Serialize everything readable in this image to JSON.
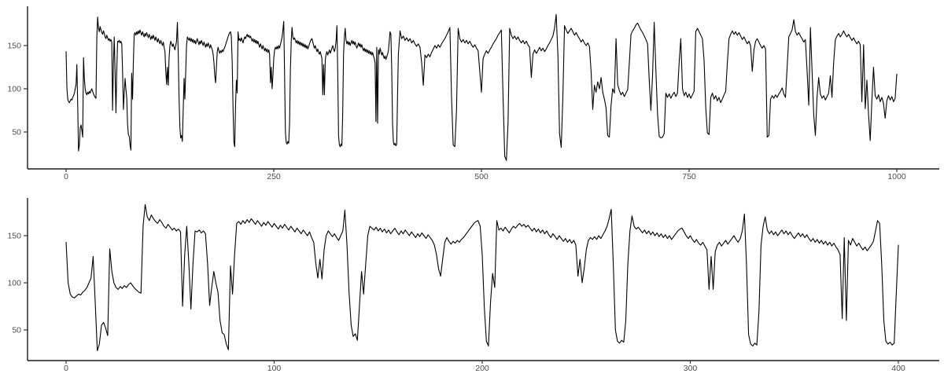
{
  "figure": {
    "background": "#ffffff",
    "line_color": "#000000",
    "axis_color": "#1a1a1a",
    "tick_color": "#333333",
    "tick_label_color": "#4d4d4d",
    "tick_font_size": 10.5
  },
  "chart_data": [
    {
      "id": "top",
      "type": "line",
      "title": "",
      "xlabel": "",
      "ylabel": "",
      "legend": false,
      "grid": false,
      "xlim": [
        0,
        1000
      ],
      "ylim": [
        7,
        195
      ],
      "x_ticks": [
        0,
        250,
        500,
        750,
        1000
      ],
      "y_ticks": [
        50,
        100,
        150
      ],
      "series_segments": [
        "segment1",
        "segment2"
      ]
    },
    {
      "id": "bottom",
      "type": "line",
      "title": "",
      "xlabel": "",
      "ylabel": "",
      "legend": false,
      "grid": false,
      "xlim": [
        0,
        400
      ],
      "ylim": [
        17,
        190
      ],
      "x_ticks": [
        0,
        100,
        200,
        300,
        400
      ],
      "y_ticks": [
        50,
        100,
        150
      ],
      "series_segments": [
        "segment1"
      ]
    }
  ],
  "series_data": {
    "segment1": {
      "x_start": 0,
      "x_step": 1,
      "y": [
        143,
        100,
        88,
        85,
        84,
        86,
        88,
        87,
        90,
        92,
        95,
        100,
        105,
        128,
        80,
        28,
        35,
        55,
        58,
        52,
        44,
        136,
        112,
        100,
        95,
        93,
        96,
        94,
        97,
        95,
        98,
        100,
        97,
        94,
        92,
        90,
        89,
        160,
        183,
        170,
        166,
        172,
        168,
        165,
        163,
        167,
        164,
        160,
        158,
        162,
        159,
        156,
        158,
        155,
        157,
        154,
        75,
        130,
        160,
        120,
        72,
        120,
        155,
        154,
        156,
        153,
        155,
        152,
        120,
        76,
        95,
        112,
        100,
        90,
        60,
        47,
        45,
        35,
        29,
        118,
        88,
        130,
        163,
        165,
        162,
        166,
        163,
        167,
        164,
        168,
        165,
        162,
        166,
        163,
        160,
        164,
        161,
        165,
        162,
        159,
        163,
        160,
        157,
        161,
        158,
        162,
        159,
        156,
        160,
        157,
        154,
        158,
        155,
        152,
        156,
        153,
        150,
        154,
        148,
        143,
        121,
        105,
        125,
        104,
        135,
        150,
        155,
        152,
        149,
        152,
        148,
        145,
        150,
        155,
        177,
        140,
        90,
        55,
        43,
        46,
        39,
        75,
        112,
        88,
        120,
        150,
        160,
        158,
        156,
        159,
        155,
        158,
        154,
        157,
        153,
        156,
        152,
        155,
        158,
        154,
        151,
        155,
        152,
        156,
        153,
        150,
        154,
        151,
        148,
        152,
        149,
        153,
        150,
        147,
        151,
        148,
        145,
        140,
        130,
        115,
        107,
        125,
        143,
        148,
        144,
        141,
        144,
        142,
        145,
        143,
        146,
        148,
        151,
        154,
        157,
        160,
        163,
        165,
        166,
        160,
        130,
        75,
        38,
        33,
        80,
        110,
        95,
        166,
        156,
        158,
        155,
        159,
        156,
        153,
        157,
        160,
        158,
        161,
        163,
        160,
        162,
        159,
        161,
        158,
        155,
        158,
        154,
        157,
        153,
        156,
        152,
        155,
        151,
        148,
        152,
        149,
        146,
        150,
        147,
        144,
        147,
        143,
        146,
        142,
        145,
        140,
        107,
        125,
        100,
        115,
        135,
        145,
        148,
        146,
        149,
        146,
        150,
        147,
        151,
        155,
        160,
        168,
        178,
        120,
        50,
        38,
        36,
        39,
        37,
        60,
        120,
        155,
        171,
        160,
        157,
        159,
        156,
        153,
        156,
        152,
        155,
        151,
        154,
        150,
        153,
        149,
        152,
        148,
        151,
        147,
        150,
        146,
        149,
        152,
        155,
        157,
        158,
        154,
        150,
        147,
        150,
        146,
        143,
        146,
        142,
        140,
        143,
        139,
        135,
        93,
        128,
        93,
        133,
        140,
        143,
        139,
        142,
        145,
        141,
        144,
        147,
        150,
        146,
        143,
        147,
        155,
        173,
        120,
        45,
        35,
        33,
        36,
        34,
        70,
        140,
        160,
        170,
        156,
        152,
        155,
        151,
        154,
        150,
        153,
        156,
        152,
        155,
        151,
        154,
        150,
        147,
        150,
        153,
        149,
        152,
        148,
        151,
        147,
        144,
        147,
        143,
        146,
        142,
        145,
        141,
        144,
        140,
        143,
        139,
        142,
        138,
        135,
        130,
        62,
        148,
        60,
        145,
        140,
        147,
        143,
        139,
        142,
        138,
        135,
        138,
        134,
        137,
        140,
        144,
        155,
        166,
        163,
        120,
        60,
        38,
        35,
        37,
        34,
        36,
        90,
        140
      ]
    },
    "segment2": {
      "x_start": 402,
      "x_step": 2,
      "y": [
        167,
        158,
        161,
        156,
        159,
        155,
        158,
        153,
        156,
        152,
        149,
        152,
        148,
        130,
        104,
        139,
        136,
        140,
        137,
        142,
        146,
        150,
        147,
        151,
        148,
        152,
        155,
        158,
        162,
        166,
        171,
        90,
        35,
        33,
        75,
        170,
        158,
        154,
        157,
        153,
        156,
        152,
        155,
        151,
        148,
        151,
        147,
        144,
        120,
        96,
        135,
        140,
        144,
        141,
        145,
        148,
        152,
        155,
        158,
        162,
        165,
        168,
        90,
        22,
        17,
        60,
        170,
        162,
        158,
        161,
        157,
        160,
        156,
        153,
        156,
        152,
        155,
        151,
        148,
        113,
        140,
        145,
        141,
        144,
        148,
        144,
        147,
        143,
        146,
        150,
        153,
        157,
        161,
        170,
        186,
        140,
        48,
        32,
        90,
        173,
        168,
        164,
        167,
        170,
        166,
        162,
        165,
        161,
        158,
        154,
        157,
        153,
        150,
        153,
        149,
        120,
        76,
        104,
        96,
        108,
        100,
        113,
        96,
        88,
        78,
        46,
        44,
        80,
        100,
        95,
        158,
        105,
        98,
        93,
        96,
        91,
        95,
        99,
        130,
        163,
        167,
        170,
        174,
        176,
        172,
        168,
        165,
        161,
        157,
        152,
        110,
        75,
        115,
        177,
        120,
        70,
        45,
        43,
        44,
        48,
        95,
        90,
        94,
        89,
        93,
        96,
        91,
        95,
        130,
        158,
        100,
        92,
        96,
        90,
        94,
        89,
        93,
        97,
        166,
        170,
        166,
        162,
        158,
        133,
        79,
        49,
        47,
        90,
        95,
        88,
        92,
        86,
        90,
        84,
        88,
        93,
        97,
        130,
        158,
        163,
        167,
        163,
        166,
        162,
        165,
        161,
        157,
        160,
        156,
        152,
        155,
        150,
        120,
        145,
        155,
        158,
        154,
        150,
        147,
        150,
        146,
        44,
        46,
        88,
        92,
        89,
        93,
        90,
        94,
        97,
        101,
        94,
        90,
        125,
        160,
        164,
        168,
        180,
        166,
        162,
        165,
        161,
        158,
        154,
        157,
        120,
        81,
        171,
        120,
        70,
        46,
        90,
        113,
        94,
        89,
        92,
        87,
        91,
        95,
        115,
        90,
        130,
        157,
        161,
        164,
        160,
        163,
        167,
        163,
        160,
        163,
        159,
        156,
        159,
        155,
        152,
        155,
        151,
        85,
        151,
        77,
        110,
        70,
        40,
        86,
        125,
        92,
        88,
        93,
        85,
        90,
        83,
        66,
        86,
        92,
        87,
        91,
        85,
        89,
        117
      ]
    }
  }
}
